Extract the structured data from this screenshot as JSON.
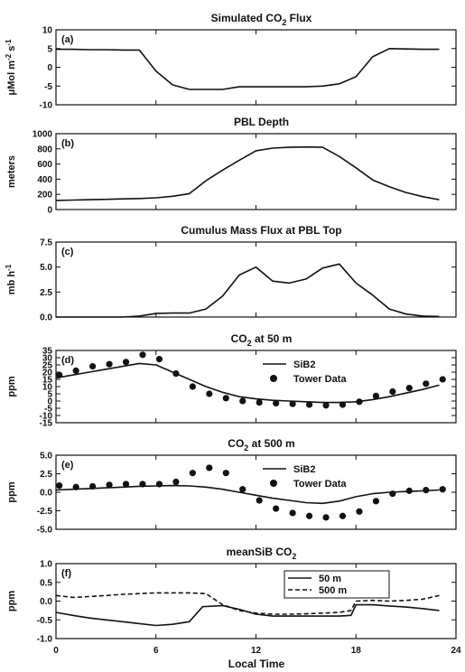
{
  "figure": {
    "xlabel": "Local Time",
    "x_ticks": [
      "0",
      "6",
      "12",
      "18",
      "24"
    ]
  },
  "chart_data": [
    {
      "panel": "(a)",
      "type": "line",
      "title": "Simulated CO",
      "title_sub": "2",
      "title_tail": " Flux",
      "ylabel": "μMol m",
      "ylabel_sup1": "-2",
      "ylabel_mid": " s",
      "ylabel_sup2": "-1",
      "xlim": [
        0,
        24
      ],
      "ylim": [
        -10,
        10
      ],
      "y_ticks": [
        "-10",
        "-5",
        "0",
        "5",
        "10"
      ],
      "series": [
        {
          "style": "solid",
          "x": [
            0,
            1,
            2,
            3,
            4,
            5,
            6,
            7,
            8,
            9,
            10,
            11,
            12,
            13,
            14,
            15,
            16,
            17,
            18,
            19,
            20,
            21,
            22,
            23
          ],
          "y": [
            4.8,
            4.8,
            4.7,
            4.7,
            4.6,
            4.6,
            -1.0,
            -4.7,
            -5.9,
            -5.9,
            -5.9,
            -5.2,
            -5.2,
            -5.2,
            -5.2,
            -5.2,
            -5.0,
            -4.4,
            -2.5,
            2.8,
            5.0,
            4.9,
            4.8,
            4.8
          ]
        }
      ]
    },
    {
      "panel": "(b)",
      "type": "line",
      "title": "PBL Depth",
      "ylabel": "meters",
      "xlim": [
        0,
        24
      ],
      "ylim": [
        0,
        1000
      ],
      "y_ticks": [
        "0",
        "200",
        "400",
        "600",
        "800",
        "1000"
      ],
      "series": [
        {
          "style": "solid",
          "x": [
            0,
            1,
            2,
            3,
            4,
            5,
            6,
            7,
            8,
            9,
            10,
            11,
            12,
            13,
            14,
            15,
            16,
            17,
            18,
            19,
            20,
            21,
            22,
            23
          ],
          "y": [
            120,
            125,
            130,
            135,
            140,
            145,
            155,
            175,
            210,
            380,
            520,
            650,
            775,
            810,
            820,
            825,
            820,
            700,
            550,
            390,
            300,
            225,
            170,
            130
          ]
        }
      ]
    },
    {
      "panel": "(c)",
      "type": "line",
      "title": "Cumulus Mass Flux at PBL Top",
      "ylabel": "mb h",
      "ylabel_sup1": "-1",
      "xlim": [
        0,
        24
      ],
      "ylim": [
        0,
        7.5
      ],
      "y_ticks": [
        "0.0",
        "2.5",
        "5.0",
        "7.5"
      ],
      "series": [
        {
          "style": "solid",
          "x": [
            0,
            1,
            2,
            3,
            4,
            5,
            6,
            7,
            8,
            9,
            10,
            11,
            12,
            13,
            14,
            15,
            16,
            17,
            18,
            19,
            20,
            21,
            22,
            23
          ],
          "y": [
            0,
            0,
            0,
            0,
            0,
            0.1,
            0.35,
            0.4,
            0.4,
            0.8,
            2.1,
            4.2,
            5.0,
            3.6,
            3.4,
            3.8,
            4.9,
            5.3,
            3.4,
            2.2,
            0.8,
            0.3,
            0.1,
            0.05
          ]
        }
      ]
    },
    {
      "panel": "(d)",
      "type": "line",
      "title": "CO",
      "title_sub": "2",
      "title_tail": " at 50 m",
      "ylabel": "ppm",
      "xlim": [
        0,
        24
      ],
      "ylim": [
        -15,
        35
      ],
      "y_ticks": [
        "-15",
        "-10",
        "-5",
        "0",
        "5",
        "10",
        "15",
        "20",
        "25",
        "30",
        "35"
      ],
      "legend_position": "upper-right",
      "series": [
        {
          "name": "SiB2",
          "style": "solid",
          "x": [
            0,
            1,
            2,
            3,
            4,
            5,
            6,
            7,
            8,
            9,
            10,
            11,
            12,
            13,
            14,
            15,
            16,
            17,
            18,
            19,
            20,
            21,
            22,
            23
          ],
          "y": [
            16,
            18,
            20,
            22,
            24,
            26,
            25,
            20,
            15,
            10,
            6,
            3,
            1.5,
            0.5,
            0,
            -0.5,
            -1,
            -1,
            -0.5,
            1,
            3,
            5.5,
            8,
            11
          ]
        },
        {
          "name": "Tower Data",
          "style": "marker",
          "x": [
            0.2,
            1.2,
            2.2,
            3.2,
            4.2,
            5.2,
            6.2,
            7.2,
            8.2,
            9.2,
            10.2,
            11.2,
            12.2,
            13.2,
            14.2,
            15.2,
            16.2,
            17.2,
            18.2,
            19.2,
            20.2,
            21.2,
            22.2,
            23.2
          ],
          "y": [
            18,
            21,
            24,
            25.5,
            27,
            32,
            29,
            19,
            10,
            5,
            2,
            0,
            -1,
            -1.5,
            -2,
            -2.5,
            -3,
            -2.5,
            -0.5,
            3.5,
            6.5,
            9,
            12,
            15
          ]
        }
      ]
    },
    {
      "panel": "(e)",
      "type": "line",
      "title": "CO",
      "title_sub": "2",
      "title_tail": " at 500 m",
      "ylabel": "ppm",
      "xlim": [
        0,
        24
      ],
      "ylim": [
        -5.0,
        5.0
      ],
      "y_ticks": [
        "-5.0",
        "-2.5",
        "0.0",
        "2.5",
        "5.0"
      ],
      "legend_position": "upper-right",
      "series": [
        {
          "name": "SiB2",
          "style": "solid",
          "x": [
            0,
            1,
            2,
            3,
            4,
            5,
            6,
            7,
            8,
            9,
            10,
            11,
            12,
            13,
            14,
            15,
            16,
            17,
            18,
            19,
            20,
            21,
            22,
            23
          ],
          "y": [
            0.3,
            0.4,
            0.5,
            0.6,
            0.7,
            0.8,
            0.85,
            0.9,
            0.85,
            0.7,
            0.4,
            0,
            -0.4,
            -0.8,
            -1.1,
            -1.4,
            -1.5,
            -1.2,
            -0.6,
            -0.2,
            0,
            0.1,
            0.2,
            0.3
          ]
        },
        {
          "name": "Tower Data",
          "style": "marker",
          "x": [
            0.2,
            1.2,
            2.2,
            3.2,
            4.2,
            5.2,
            6.2,
            7.2,
            8.2,
            9.2,
            10.2,
            11.2,
            12.2,
            13.2,
            14.2,
            15.2,
            16.2,
            17.2,
            18.2,
            19.2,
            20.2,
            21.2,
            22.2,
            23.2
          ],
          "y": [
            0.9,
            0.7,
            0.8,
            1.0,
            1.1,
            1.1,
            1.1,
            1.4,
            2.6,
            3.3,
            2.6,
            0.4,
            -1.1,
            -2.2,
            -2.8,
            -3.2,
            -3.4,
            -3.2,
            -2.6,
            -1.2,
            -0.2,
            0.2,
            0.3,
            0.4
          ]
        }
      ]
    },
    {
      "panel": "(f)",
      "type": "line",
      "title": "meanSiB CO",
      "title_sub": "2",
      "ylabel": "ppm",
      "xlim": [
        0,
        24
      ],
      "ylim": [
        -1.0,
        1.0
      ],
      "y_ticks": [
        "-1.0",
        "-0.5",
        "0.0",
        "0.5",
        "1.0"
      ],
      "legend_position": "upper-right",
      "series": [
        {
          "name": "50 m",
          "style": "solid",
          "x": [
            0,
            1,
            2,
            3,
            4,
            5,
            6,
            7,
            8,
            8.8,
            10,
            11,
            12,
            13,
            14,
            15,
            16,
            17,
            17.7,
            18,
            19,
            20,
            21,
            22,
            23
          ],
          "y": [
            -0.3,
            -0.38,
            -0.45,
            -0.5,
            -0.55,
            -0.6,
            -0.65,
            -0.62,
            -0.55,
            -0.15,
            -0.12,
            -0.22,
            -0.35,
            -0.4,
            -0.4,
            -0.4,
            -0.4,
            -0.4,
            -0.38,
            -0.1,
            -0.1,
            -0.13,
            -0.16,
            -0.2,
            -0.25
          ]
        },
        {
          "name": "500 m",
          "style": "dashed",
          "x": [
            0,
            1,
            2,
            3,
            4,
            5,
            6,
            7,
            8,
            9,
            10,
            11,
            12,
            13,
            14,
            15,
            16,
            17,
            17.7,
            18,
            19,
            20,
            21,
            22,
            23
          ],
          "y": [
            0.15,
            0.1,
            0.12,
            0.15,
            0.18,
            0.2,
            0.22,
            0.22,
            0.22,
            0.2,
            -0.1,
            -0.25,
            -0.32,
            -0.35,
            -0.35,
            -0.34,
            -0.32,
            -0.3,
            -0.25,
            0.0,
            0.02,
            0.0,
            0.02,
            0.05,
            0.15
          ]
        }
      ]
    }
  ]
}
